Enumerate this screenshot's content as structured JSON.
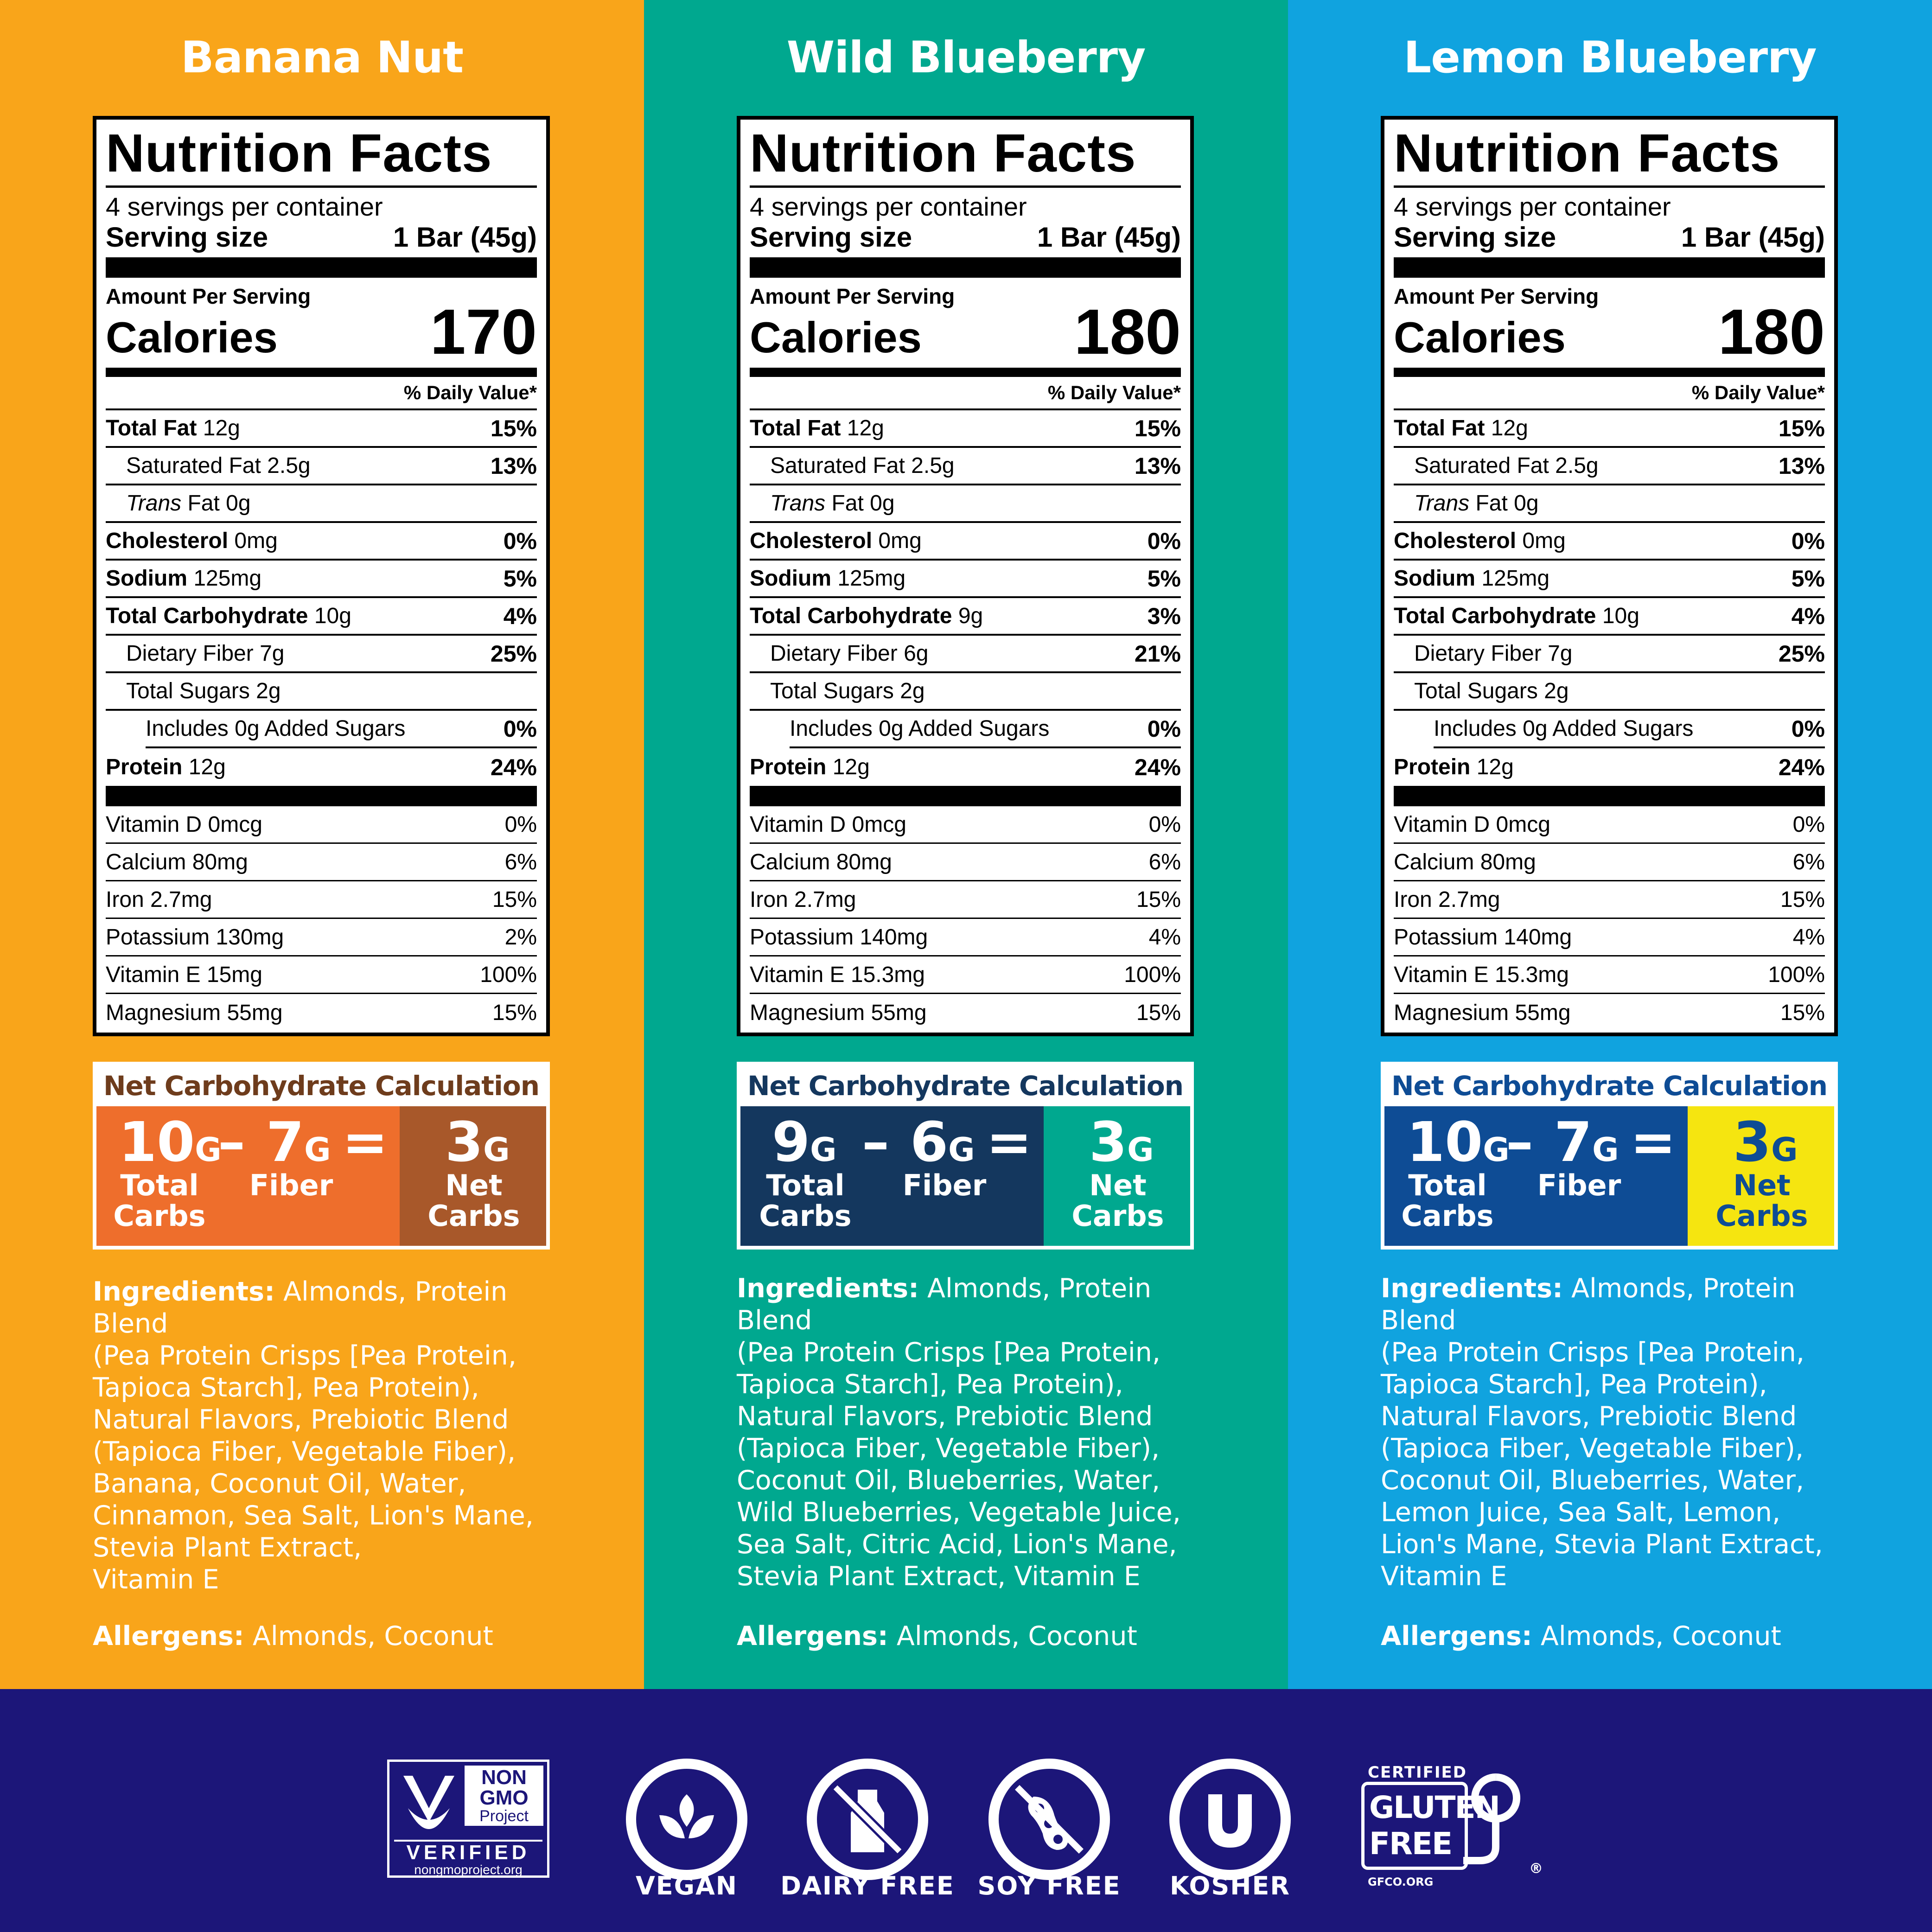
{
  "columns": [
    {
      "title": "Banana Nut",
      "bg": "#F9A51A",
      "nc_color": "#6E3C1C",
      "nc_left_bg": "#EE6E2C",
      "nc_right_bg": "#A8582A",
      "nc_right_text": "#FFFFFF",
      "servings": "4 servings per container",
      "serving_label": "Serving size",
      "serving_value": "1 Bar (45g)",
      "amount_label": "Amount Per Serving",
      "calories_label": "Calories",
      "calories": "170",
      "dv_label": "% Daily Value*",
      "total_fat": [
        "Total Fat",
        "12g",
        "15%"
      ],
      "sat_fat": [
        "Saturated Fat 2.5g",
        "13%"
      ],
      "trans_fat": [
        "Trans",
        "Fat 0g"
      ],
      "cholesterol": [
        "Cholesterol",
        "0mg",
        "0%"
      ],
      "sodium": [
        "Sodium",
        "125mg",
        "5%"
      ],
      "carb": [
        "Total Carbohydrate",
        "10g",
        "4%"
      ],
      "fiber": [
        "Dietary Fiber 7g",
        "25%"
      ],
      "sugars": "Total Sugars 2g",
      "added_sugars": [
        "Includes 0g Added Sugars",
        "0%"
      ],
      "protein": [
        "Protein",
        "12g",
        "24%"
      ],
      "vitamins": [
        [
          "Vitamin D 0mcg",
          "0%"
        ],
        [
          "Calcium 80mg",
          "6%"
        ],
        [
          "Iron 2.7mg",
          "15%"
        ],
        [
          "Potassium 130mg",
          "2%"
        ],
        [
          "Vitamin E 15mg",
          "100%"
        ],
        [
          "Magnesium 55mg",
          "15%"
        ]
      ],
      "nc_title": "Net Carbohydrate Calculation",
      "nc_total": "10",
      "nc_fiber": "7",
      "nc_net": "3",
      "nc_unit": "G",
      "nc_minus": "–",
      "nc_equals": "=",
      "nc_total_label": [
        "Total",
        "Carbs"
      ],
      "nc_fiber_label": "Fiber",
      "nc_net_label": [
        "Net",
        "Carbs"
      ],
      "ingredients_label": "Ingredients:",
      "ingredients": [
        " Almonds, Protein Blend",
        "(Pea Protein Crisps [Pea Protein,",
        "Tapioca Starch], Pea Protein),",
        "Natural Flavors, Prebiotic Blend",
        "(Tapioca Fiber, Vegetable Fiber),",
        "Banana, Coconut Oil, Water,",
        "Cinnamon, Sea Salt, Lion's Mane,",
        "Stevia Plant Extract,",
        "Vitamin E"
      ],
      "allergens_label": "Allergens:",
      "allergens": " Almonds, Coconut"
    },
    {
      "title": "Wild Blueberry",
      "bg": "#00A88F",
      "nc_color": "#14375E",
      "nc_left_bg": "#14375E",
      "nc_right_bg": "#00A88F",
      "nc_right_text": "#FFFFFF",
      "servings": "4 servings per container",
      "serving_label": "Serving size",
      "serving_value": "1 Bar (45g)",
      "amount_label": "Amount Per Serving",
      "calories_label": "Calories",
      "calories": "180",
      "dv_label": "% Daily Value*",
      "total_fat": [
        "Total Fat",
        "12g",
        "15%"
      ],
      "sat_fat": [
        "Saturated Fat 2.5g",
        "13%"
      ],
      "trans_fat": [
        "Trans",
        "Fat 0g"
      ],
      "cholesterol": [
        "Cholesterol",
        "0mg",
        "0%"
      ],
      "sodium": [
        "Sodium",
        "125mg",
        "5%"
      ],
      "carb": [
        "Total Carbohydrate",
        "9g",
        "3%"
      ],
      "fiber": [
        "Dietary Fiber 6g",
        "21%"
      ],
      "sugars": "Total Sugars 2g",
      "added_sugars": [
        "Includes 0g Added Sugars",
        "0%"
      ],
      "protein": [
        "Protein",
        "12g",
        "24%"
      ],
      "vitamins": [
        [
          "Vitamin D 0mcg",
          "0%"
        ],
        [
          "Calcium 80mg",
          "6%"
        ],
        [
          "Iron 2.7mg",
          "15%"
        ],
        [
          "Potassium 140mg",
          "4%"
        ],
        [
          "Vitamin E 15.3mg",
          "100%"
        ],
        [
          "Magnesium 55mg",
          "15%"
        ]
      ],
      "nc_title": "Net Carbohydrate Calculation",
      "nc_total": "9",
      "nc_fiber": "6",
      "nc_net": "3",
      "nc_unit": "G",
      "nc_minus": "–",
      "nc_equals": "=",
      "nc_total_label": [
        "Total",
        "Carbs"
      ],
      "nc_fiber_label": "Fiber",
      "nc_net_label": [
        "Net",
        "Carbs"
      ],
      "ingredients_label": "Ingredients:",
      "ingredients": [
        " Almonds, Protein Blend",
        "(Pea Protein Crisps [Pea Protein,",
        "Tapioca Starch], Pea Protein),",
        "Natural Flavors, Prebiotic Blend",
        "(Tapioca Fiber, Vegetable Fiber),",
        "Coconut Oil, Blueberries, Water,",
        "Wild Blueberries, Vegetable Juice,",
        "Sea Salt, Citric Acid, Lion's Mane,",
        "Stevia Plant Extract, Vitamin E"
      ],
      "allergens_label": "Allergens:",
      "allergens": " Almonds, Coconut"
    },
    {
      "title": "Lemon Blueberry",
      "bg": "#10A3DF",
      "nc_color": "#0E4C95",
      "nc_left_bg": "#0E4C95",
      "nc_right_bg": "#F5E510",
      "nc_right_text": "#0E4C95",
      "servings": "4 servings per container",
      "serving_label": "Serving size",
      "serving_value": "1 Bar (45g)",
      "amount_label": "Amount Per Serving",
      "calories_label": "Calories",
      "calories": "180",
      "dv_label": "% Daily Value*",
      "total_fat": [
        "Total Fat",
        "12g",
        "15%"
      ],
      "sat_fat": [
        "Saturated Fat 2.5g",
        "13%"
      ],
      "trans_fat": [
        "Trans",
        "Fat 0g"
      ],
      "cholesterol": [
        "Cholesterol",
        "0mg",
        "0%"
      ],
      "sodium": [
        "Sodium",
        "125mg",
        "5%"
      ],
      "carb": [
        "Total Carbohydrate",
        "10g",
        "4%"
      ],
      "fiber": [
        "Dietary Fiber 7g",
        "25%"
      ],
      "sugars": "Total Sugars 2g",
      "added_sugars": [
        "Includes 0g Added Sugars",
        "0%"
      ],
      "protein": [
        "Protein",
        "12g",
        "24%"
      ],
      "vitamins": [
        [
          "Vitamin D 0mcg",
          "0%"
        ],
        [
          "Calcium 80mg",
          "6%"
        ],
        [
          "Iron 2.7mg",
          "15%"
        ],
        [
          "Potassium 140mg",
          "4%"
        ],
        [
          "Vitamin E 15.3mg",
          "100%"
        ],
        [
          "Magnesium 55mg",
          "15%"
        ]
      ],
      "nc_title": "Net Carbohydrate Calculation",
      "nc_total": "10",
      "nc_fiber": "7",
      "nc_net": "3",
      "nc_unit": "G",
      "nc_minus": "–",
      "nc_equals": "=",
      "nc_total_label": [
        "Total",
        "Carbs"
      ],
      "nc_fiber_label": "Fiber",
      "nc_net_label": [
        "Net",
        "Carbs"
      ],
      "ingredients_label": "Ingredients:",
      "ingredients": [
        " Almonds, Protein Blend",
        "(Pea Protein Crisps [Pea Protein,",
        "Tapioca Starch], Pea Protein),",
        "Natural Flavors, Prebiotic Blend",
        "(Tapioca Fiber, Vegetable Fiber),",
        "Coconut Oil, Blueberries, Water,",
        "Lemon Juice, Sea Salt, Lemon,",
        "Lion's Mane, Stevia Plant Extract,",
        "Vitamin E"
      ],
      "allergens_label": "Allergens:",
      "allergens": " Almonds, Coconut"
    }
  ],
  "footer": {
    "bg": "#1C1679",
    "nongmo": {
      "line1": "NON",
      "line2": "GMO",
      "line3": "Project",
      "verified": "VERIFIED",
      "url": "nongmoproject.org",
      "icon": "butterfly-leaf-icon"
    },
    "badges": [
      {
        "label": "VEGAN",
        "icon": "plant-leaves-icon"
      },
      {
        "label": "DAIRY FREE",
        "icon": "milk-bottle-crossed-icon"
      },
      {
        "label": "SOY FREE",
        "icon": "soybean-crossed-icon"
      },
      {
        "label": "KOSHER",
        "icon": "u-kosher-icon"
      }
    ],
    "gluten_free": {
      "certified": "CERTIFIED",
      "line1": "GLUTEN",
      "line2": "FREE",
      "reg": "®",
      "url": "GFCO.ORG",
      "icon": "g-wheat-icon"
    }
  }
}
